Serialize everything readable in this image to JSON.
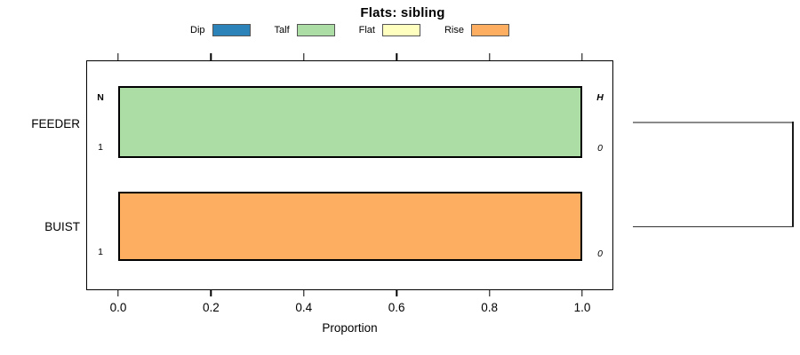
{
  "title": "Flats: sibling",
  "legend": {
    "items": [
      {
        "label": "Dip",
        "color": "#2B83BA"
      },
      {
        "label": "Talf",
        "color": "#ABDDA4"
      },
      {
        "label": "Flat",
        "color": "#FFFFBF"
      },
      {
        "label": "Rise",
        "color": "#FDAE61"
      }
    ]
  },
  "chart_data": {
    "type": "bar",
    "orientation": "horizontal",
    "stacked": true,
    "title": "Flats: sibling",
    "xlabel": "Proportion",
    "xlim": [
      0.0,
      1.0
    ],
    "xticks": [
      "0.0",
      "0.2",
      "0.4",
      "0.6",
      "0.8",
      "1.0"
    ],
    "grid": false,
    "legend_position": "top",
    "categories": [
      "FEEDER",
      "BUIST"
    ],
    "series": [
      {
        "name": "Dip",
        "values": [
          0,
          0
        ]
      },
      {
        "name": "Talf",
        "values": [
          1.0,
          0
        ]
      },
      {
        "name": "Flat",
        "values": [
          0,
          0
        ]
      },
      {
        "name": "Rise",
        "values": [
          0,
          1.0
        ]
      }
    ],
    "annotations": {
      "FEEDER": {
        "left_top": "N",
        "left_bottom": "1",
        "right_top": "H",
        "right_bottom": "0"
      },
      "BUIST": {
        "left_bottom": "1",
        "right_bottom": "0"
      }
    },
    "dendrogram": {
      "description": "right-side bracket joining FEEDER and BUIST rows"
    }
  }
}
